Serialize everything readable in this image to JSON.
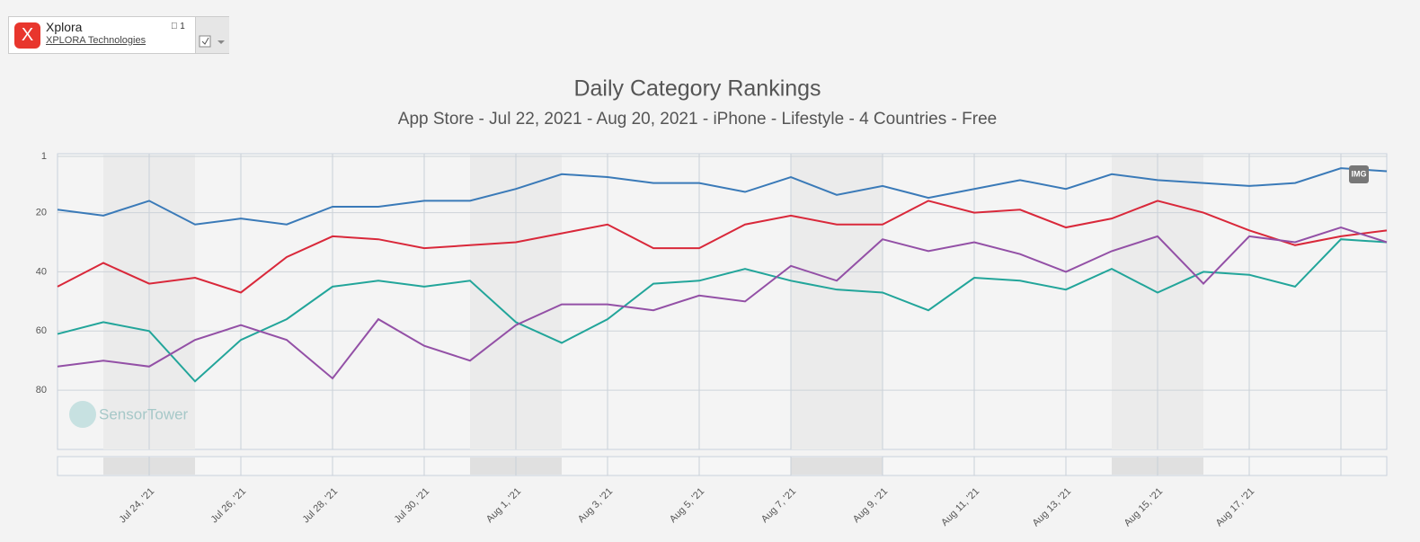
{
  "header": {
    "app_name": "Xplora",
    "publisher": "XPLORA Technologies",
    "badge": "1",
    "watermark": "SensorTower",
    "export_button": "IMG"
  },
  "chart_data": {
    "type": "line",
    "title": "Daily Category Rankings",
    "subtitle": "App Store - Jul 22, 2021 - Aug 20, 2021 - iPhone - Lifestyle - 4 Countries - Free",
    "categories": [
      null,
      null,
      "Jul 24, '21",
      null,
      "Jul 26, '21",
      null,
      "Jul 28, '21",
      null,
      "Jul 30, '21",
      null,
      "Aug 1, '21",
      null,
      "Aug 3, '21",
      null,
      "Aug 5, '21",
      null,
      "Aug 7, '21",
      null,
      "Aug 9, '21",
      null,
      "Aug 11, '21",
      null,
      "Aug 13, '21",
      null,
      "Aug 15, '21",
      null,
      "Aug 17, '21",
      null,
      null,
      null
    ],
    "ylim": [
      1,
      100
    ],
    "yticks": [
      1,
      20,
      40,
      60,
      80
    ],
    "y_reversed": true,
    "grid": true,
    "series": [
      {
        "color": "#3a7ab8",
        "values": [
          19,
          21,
          16,
          24,
          22,
          24,
          18,
          18,
          16,
          16,
          12,
          7,
          8,
          10,
          10,
          13,
          8,
          14,
          11,
          15,
          12,
          9,
          12,
          7,
          9,
          10,
          11,
          10,
          5,
          6
        ]
      },
      {
        "color": "#d9283a",
        "values": [
          45,
          37,
          44,
          42,
          47,
          35,
          28,
          29,
          32,
          31,
          30,
          27,
          24,
          32,
          32,
          24,
          21,
          24,
          24,
          16,
          20,
          19,
          25,
          22,
          16,
          20,
          26,
          31,
          28,
          26
        ]
      },
      {
        "color": "#22a59a",
        "values": [
          61,
          57,
          60,
          77,
          63,
          56,
          45,
          43,
          45,
          43,
          57,
          64,
          56,
          44,
          43,
          39,
          43,
          46,
          47,
          53,
          42,
          43,
          46,
          39,
          47,
          40,
          41,
          45,
          29,
          30
        ]
      },
      {
        "color": "#9350a6",
        "values": [
          72,
          70,
          72,
          63,
          58,
          63,
          76,
          56,
          65,
          70,
          58,
          51,
          51,
          53,
          48,
          50,
          38,
          43,
          29,
          33,
          30,
          34,
          40,
          33,
          28,
          44,
          28,
          30,
          25,
          30
        ]
      }
    ]
  }
}
